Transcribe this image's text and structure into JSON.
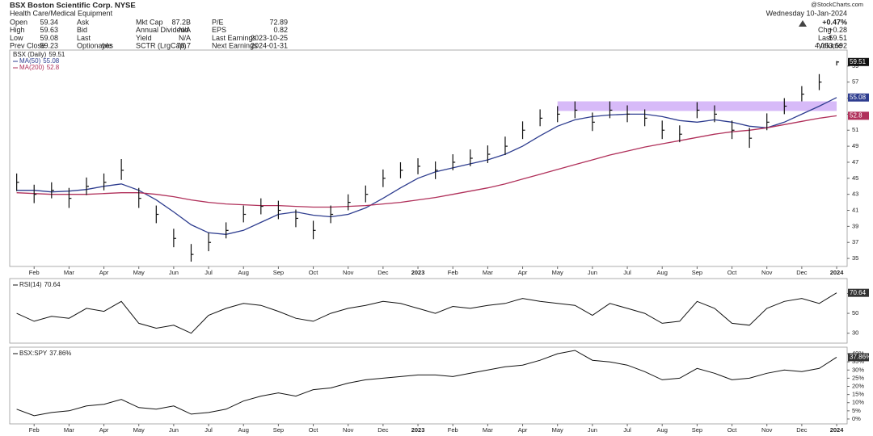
{
  "header": {
    "title": "BSX Boston Scientific Corp. NYSE",
    "subtitle": "Health Care/Medical Equipment",
    "columns": [
      [
        {
          "label": "Open",
          "value": "59.34"
        },
        {
          "label": "High",
          "value": "59.63"
        },
        {
          "label": "Low",
          "value": "59.08"
        },
        {
          "label": "Prev Close",
          "value": "59.23"
        }
      ],
      [
        {
          "label": "Ask"
        },
        {
          "label": "Bid"
        },
        {
          "label": "Last"
        },
        {
          "label": "Optionable",
          "value": "yes"
        }
      ],
      [
        {
          "label": "Mkt Cap",
          "value": "87.2B"
        },
        {
          "label": "Annual Dividend",
          "value": "N/A"
        },
        {
          "label": "Yield",
          "value": "N/A"
        },
        {
          "label": "SCTR (LrgCap)",
          "value": "78.7"
        }
      ],
      [
        {
          "label": "P/E",
          "value": "72.89"
        },
        {
          "label": "EPS",
          "value": "0.82"
        },
        {
          "label": "Last Earnings",
          "value": "2023-10-25"
        },
        {
          "label": "Next Earnings",
          "value": "2024-01-31"
        }
      ]
    ],
    "site": "@StockCharts.com",
    "date": "Wednesday 10-Jan-2024",
    "quote": [
      {
        "label": "",
        "value": "+0.47%"
      },
      {
        "label": "Chg",
        "value": "+0.28"
      },
      {
        "label": "Last",
        "value": "59.51"
      },
      {
        "label": "Volume",
        "value": "4,053,592"
      }
    ]
  },
  "chart_data": [
    {
      "type": "ohlc",
      "title": "BSX (Daily)",
      "color": "#111111",
      "categories": [
        null,
        "Feb",
        null,
        "Mar",
        null,
        "Apr",
        null,
        "May",
        null,
        "Jun",
        null,
        "Jul",
        null,
        "Aug",
        null,
        "Sep",
        null,
        "Oct",
        null,
        "Nov",
        null,
        "Dec",
        null,
        "2023",
        null,
        "Feb",
        null,
        "Mar",
        null,
        "Apr",
        null,
        "May",
        null,
        "Jun",
        null,
        "Jul",
        null,
        "Aug",
        null,
        "Sep",
        null,
        "Oct",
        null,
        "Nov",
        null,
        "Dec",
        null,
        "2024"
      ],
      "high": [
        45.6,
        44.2,
        44.5,
        43.8,
        45.1,
        45.6,
        47.4,
        43.8,
        41.6,
        38.7,
        36.8,
        38.2,
        39.5,
        41.6,
        42.5,
        42.2,
        41.1,
        39.7,
        41.6,
        43.0,
        44.1,
        46.1,
        47.0,
        47.5,
        47.1,
        48.0,
        48.6,
        49.1,
        50.2,
        52.1,
        53.6,
        54.0,
        54.6,
        53.2,
        54.6,
        54.1,
        53.6,
        52.2,
        51.6,
        54.5,
        54.1,
        52.2,
        51.3,
        53.1,
        55.0,
        56.5,
        58.0,
        59.63
      ],
      "low": [
        43.4,
        41.9,
        42.5,
        41.3,
        42.9,
        43.5,
        44.8,
        41.3,
        39.4,
        36.4,
        34.6,
        35.9,
        37.5,
        39.5,
        40.5,
        39.9,
        38.9,
        37.4,
        39.4,
        41.0,
        42.0,
        43.9,
        45.0,
        45.5,
        44.9,
        46.0,
        46.5,
        46.9,
        47.9,
        49.9,
        51.5,
        52.0,
        52.5,
        50.9,
        52.5,
        52.0,
        51.5,
        49.9,
        49.5,
        52.5,
        52.0,
        49.9,
        48.8,
        51.0,
        53.0,
        54.6,
        56.0,
        59.08
      ],
      "close": [
        44.5,
        43.0,
        43.5,
        42.5,
        44.0,
        44.5,
        46.0,
        42.5,
        40.5,
        37.5,
        35.5,
        37.0,
        38.5,
        40.5,
        41.5,
        41.0,
        40.0,
        38.5,
        40.5,
        42.0,
        43.0,
        45.0,
        46.0,
        46.5,
        46.0,
        47.0,
        47.5,
        48.0,
        49.0,
        51.0,
        52.5,
        53.0,
        53.5,
        52.0,
        53.5,
        53.0,
        52.5,
        51.0,
        50.5,
        53.5,
        53.0,
        51.0,
        50.0,
        52.0,
        54.0,
        55.5,
        57.0,
        59.51
      ],
      "series": [
        {
          "name": "MA(50)",
          "color": "#2e3d8f",
          "values": [
            43.5,
            43.5,
            43.3,
            43.4,
            43.6,
            44.0,
            44.3,
            43.5,
            42.3,
            40.8,
            39.2,
            38.2,
            38.0,
            38.5,
            39.5,
            40.5,
            40.8,
            40.4,
            40.2,
            40.5,
            41.3,
            42.5,
            43.8,
            45.0,
            45.8,
            46.3,
            46.8,
            47.3,
            48.0,
            49.0,
            50.3,
            51.5,
            52.3,
            52.7,
            52.9,
            53.0,
            53.0,
            52.7,
            52.2,
            52.0,
            52.3,
            52.0,
            51.5,
            51.3,
            52.0,
            53.0,
            54.0,
            55.08
          ]
        },
        {
          "name": "MA(200)",
          "color": "#b0305a",
          "values": [
            43.2,
            43.1,
            43.0,
            43.0,
            43.0,
            43.1,
            43.2,
            43.2,
            43.0,
            42.7,
            42.3,
            42.0,
            41.8,
            41.7,
            41.6,
            41.6,
            41.5,
            41.4,
            41.4,
            41.5,
            41.6,
            41.8,
            42.0,
            42.3,
            42.6,
            43.0,
            43.4,
            43.8,
            44.3,
            44.9,
            45.5,
            46.1,
            46.7,
            47.3,
            47.9,
            48.4,
            48.9,
            49.3,
            49.7,
            50.1,
            50.5,
            50.8,
            51.0,
            51.3,
            51.7,
            52.1,
            52.5,
            52.8
          ]
        }
      ],
      "highlight_x": [
        31,
        47
      ],
      "highlight_y": [
        53.4,
        54.6
      ],
      "highlight_color": "#c9a3f5",
      "ylim": [
        34,
        61
      ],
      "yticks": [
        35,
        37,
        39,
        41,
        43,
        45,
        47,
        49,
        51,
        53,
        55,
        57,
        59
      ]
    },
    {
      "type": "line",
      "title": "RSI(14)",
      "color": "#111111",
      "values": [
        50,
        42,
        47,
        45,
        55,
        52,
        62,
        40,
        35,
        38,
        30,
        48,
        55,
        60,
        58,
        52,
        45,
        42,
        50,
        55,
        58,
        62,
        60,
        55,
        50,
        57,
        55,
        58,
        60,
        65,
        62,
        60,
        58,
        48,
        60,
        55,
        50,
        40,
        42,
        62,
        55,
        40,
        38,
        55,
        62,
        65,
        60,
        70.64
      ],
      "ylim": [
        20,
        85
      ],
      "yticks": [
        30,
        50,
        70
      ]
    },
    {
      "type": "line",
      "title": "BSX:SPY",
      "color": "#111111",
      "categories": [
        null,
        "Feb",
        null,
        "Mar",
        null,
        "Apr",
        null,
        "May",
        null,
        "Jun",
        null,
        "Jul",
        null,
        "Aug",
        null,
        "Sep",
        null,
        "Oct",
        null,
        "Nov",
        null,
        "Dec",
        null,
        "2023",
        null,
        "Feb",
        null,
        "Mar",
        null,
        "Apr",
        null,
        "May",
        null,
        "Jun",
        null,
        "Jul",
        null,
        "Aug",
        null,
        "Sep",
        null,
        "Oct",
        null,
        "Nov",
        null,
        "Dec",
        null,
        "2024"
      ],
      "values": [
        6,
        2,
        4,
        5,
        8,
        9,
        12,
        7,
        6,
        8,
        3,
        4,
        6,
        11,
        14,
        16,
        14,
        18,
        19,
        22,
        24,
        25,
        26,
        27,
        27,
        26,
        28,
        30,
        32,
        33,
        36,
        40,
        42,
        36,
        35,
        33,
        29,
        24,
        25,
        31,
        28,
        24,
        25,
        28,
        30,
        29,
        31,
        37.86
      ],
      "last_label": "37.86%",
      "ylim": [
        -3,
        44
      ],
      "yticks": [
        {
          "value": 0,
          "label": "0%"
        },
        {
          "value": 5,
          "label": "5%"
        },
        {
          "value": 10,
          "label": "10%"
        },
        {
          "value": 15,
          "label": "15%"
        },
        {
          "value": 20,
          "label": "20%"
        },
        {
          "value": 25,
          "label": "25%"
        },
        {
          "value": 30,
          "label": "30%"
        },
        {
          "value": 35,
          "label": "35%"
        },
        {
          "value": 40,
          "label": "40%"
        }
      ]
    }
  ]
}
